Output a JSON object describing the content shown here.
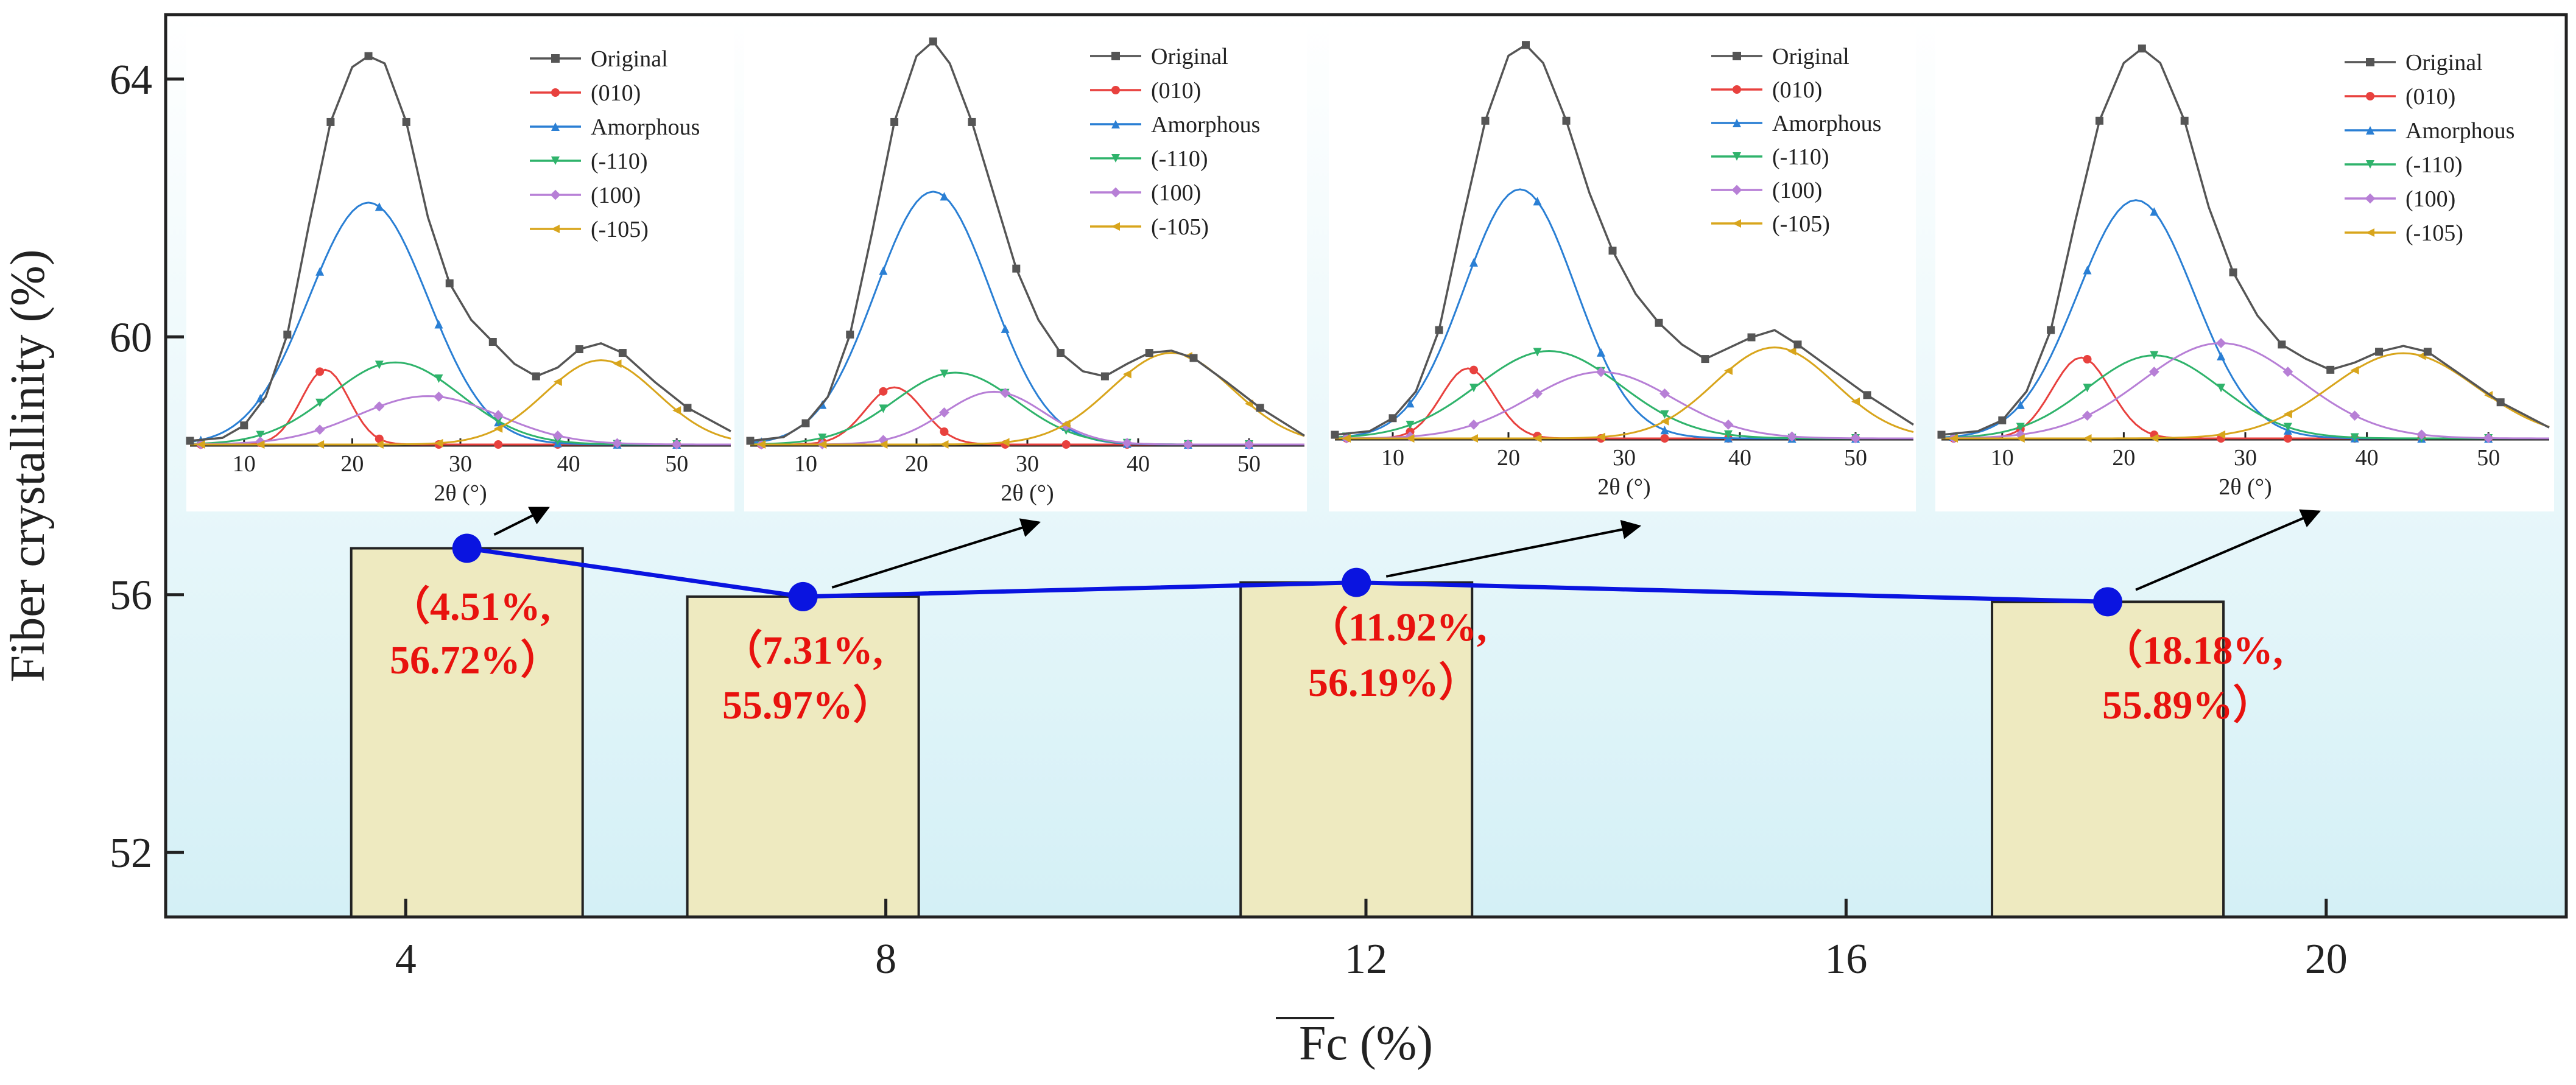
{
  "chart_data": {
    "type": "bar",
    "xlabel": "Fc (%)",
    "ylabel": "Fiber crystallinity (%)",
    "xlim": [
      2,
      22
    ],
    "ylim": [
      51,
      65
    ],
    "xticks": [
      4,
      8,
      12,
      16,
      20
    ],
    "yticks": [
      52,
      56,
      60,
      64
    ],
    "grid": false,
    "bars": {
      "x": [
        4.51,
        7.31,
        11.92,
        18.18
      ],
      "values": [
        56.72,
        55.97,
        56.19,
        55.89
      ],
      "color": "#eeeac0"
    },
    "line": {
      "x": [
        4.51,
        7.31,
        11.92,
        18.18
      ],
      "values": [
        56.72,
        55.97,
        56.19,
        55.89
      ],
      "color": "#0a14e0"
    },
    "data_labels": [
      [
        "（4.51%,",
        "56.72%）"
      ],
      [
        "（7.31%,",
        "55.97%）"
      ],
      [
        "（11.92%,",
        "56.19%）"
      ],
      [
        "（18.18%,",
        "55.89%）"
      ]
    ],
    "background_gradient": [
      "#ffffff",
      "#d4f0f6"
    ],
    "insets": {
      "type": "line",
      "xlabel": "2θ (°)",
      "xticks": [
        10,
        20,
        30,
        40,
        50
      ],
      "xlim": [
        5,
        55
      ],
      "legend_position": "top-right",
      "series_style": [
        {
          "name": "Original",
          "color": "#555555",
          "marker": "square"
        },
        {
          "name": "(010)",
          "color": "#e8413e",
          "marker": "circle"
        },
        {
          "name": "Amorphous",
          "color": "#2a7fd4",
          "marker": "triangle-up"
        },
        {
          "name": "(-110)",
          "color": "#2fb36b",
          "marker": "triangle-down"
        },
        {
          "name": "(100)",
          "color": "#b77fd6",
          "marker": "diamond"
        },
        {
          "name": "(-105)",
          "color": "#d8a51c",
          "marker": "triangle-left"
        }
      ],
      "panels": [
        {
          "original": [
            [
              5,
              0.5
            ],
            [
              8,
              0.9
            ],
            [
              10,
              2.6
            ],
            [
              12,
              6.5
            ],
            [
              14,
              15
            ],
            [
              16,
              30
            ],
            [
              18,
              44
            ],
            [
              20,
              51.5
            ],
            [
              21.5,
              53
            ],
            [
              23,
              52
            ],
            [
              25,
              44
            ],
            [
              27,
              31
            ],
            [
              29,
              22
            ],
            [
              31,
              17
            ],
            [
              33,
              14
            ],
            [
              35,
              11
            ],
            [
              37,
              9.3
            ],
            [
              39,
              10.5
            ],
            [
              41,
              13
            ],
            [
              43,
              13.8
            ],
            [
              45,
              12.5
            ],
            [
              48,
              8.5
            ],
            [
              51,
              5
            ],
            [
              55,
              1.8
            ]
          ],
          "components": [
            {
              "peak": 10.2,
              "center": 17.5,
              "width": 2.2
            },
            {
              "peak": 33,
              "center": 21.5,
              "width": 5.5
            },
            {
              "peak": 11.2,
              "center": 24,
              "width": 6
            },
            {
              "peak": 6.6,
              "center": 27,
              "width": 6.5
            },
            {
              "peak": 11.5,
              "center": 43,
              "width": 5.2
            }
          ]
        },
        {
          "original": [
            [
              5,
              0.5
            ],
            [
              8,
              1
            ],
            [
              10,
              2.9
            ],
            [
              12,
              6.5
            ],
            [
              14,
              15
            ],
            [
              16,
              29
            ],
            [
              18,
              44
            ],
            [
              20,
              53
            ],
            [
              21.5,
              55
            ],
            [
              23,
              52
            ],
            [
              25,
              44
            ],
            [
              27,
              34
            ],
            [
              29,
              24
            ],
            [
              31,
              17
            ],
            [
              33,
              12.5
            ],
            [
              35,
              10
            ],
            [
              37,
              9.3
            ],
            [
              39,
              11
            ],
            [
              41,
              12.5
            ],
            [
              43,
              12.8
            ],
            [
              45,
              11.8
            ],
            [
              48,
              8.5
            ],
            [
              51,
              5
            ],
            [
              55,
              1.2
            ]
          ],
          "components": [
            {
              "peak": 7.8,
              "center": 18,
              "width": 2.6
            },
            {
              "peak": 34.5,
              "center": 21.5,
              "width": 5.2
            },
            {
              "peak": 9.8,
              "center": 23.5,
              "width": 5.5
            },
            {
              "peak": 7.2,
              "center": 27,
              "width": 4.5
            },
            {
              "peak": 12.5,
              "center": 43,
              "width": 5.5
            }
          ]
        },
        {
          "original": [
            [
              5,
              0.5
            ],
            [
              8,
              1
            ],
            [
              10,
              2.8
            ],
            [
              12,
              6.5
            ],
            [
              14,
              15
            ],
            [
              16,
              30
            ],
            [
              18,
              44
            ],
            [
              20,
              53
            ],
            [
              21.5,
              54.5
            ],
            [
              23,
              52
            ],
            [
              25,
              44
            ],
            [
              27,
              34
            ],
            [
              29,
              26
            ],
            [
              31,
              20
            ],
            [
              33,
              16
            ],
            [
              35,
              13
            ],
            [
              37,
              11
            ],
            [
              39,
              12.5
            ],
            [
              41,
              14
            ],
            [
              43,
              15
            ],
            [
              45,
              13
            ],
            [
              48,
              9.5
            ],
            [
              51,
              6
            ],
            [
              55,
              1.9
            ]
          ],
          "components": [
            {
              "peak": 9.7,
              "center": 16.5,
              "width": 2.3
            },
            {
              "peak": 34.5,
              "center": 21,
              "width": 4.8
            },
            {
              "peak": 12.1,
              "center": 23.5,
              "width": 6.2
            },
            {
              "peak": 9.2,
              "center": 28,
              "width": 6.2
            },
            {
              "peak": 12.6,
              "center": 43,
              "width": 5.2
            }
          ]
        },
        {
          "original": [
            [
              5,
              0.5
            ],
            [
              8,
              1
            ],
            [
              10,
              2.5
            ],
            [
              12,
              6.5
            ],
            [
              14,
              15
            ],
            [
              16,
              30
            ],
            [
              18,
              44
            ],
            [
              20,
              52
            ],
            [
              21.5,
              54
            ],
            [
              23,
              52
            ],
            [
              25,
              44
            ],
            [
              27,
              32
            ],
            [
              29,
              23
            ],
            [
              31,
              17
            ],
            [
              33,
              13
            ],
            [
              35,
              11
            ],
            [
              37,
              9.5
            ],
            [
              39,
              10.5
            ],
            [
              41,
              12
            ],
            [
              43,
              12.8
            ],
            [
              45,
              12
            ],
            [
              48,
              8.5
            ],
            [
              51,
              5
            ],
            [
              55,
              1.5
            ]
          ],
          "components": [
            {
              "peak": 11.2,
              "center": 16.5,
              "width": 2.4
            },
            {
              "peak": 33,
              "center": 21,
              "width": 4.8
            },
            {
              "peak": 11.5,
              "center": 22.5,
              "width": 5.5
            },
            {
              "peak": 13.2,
              "center": 28,
              "width": 6.5
            },
            {
              "peak": 11.8,
              "center": 43,
              "width": 6
            }
          ]
        }
      ]
    }
  }
}
